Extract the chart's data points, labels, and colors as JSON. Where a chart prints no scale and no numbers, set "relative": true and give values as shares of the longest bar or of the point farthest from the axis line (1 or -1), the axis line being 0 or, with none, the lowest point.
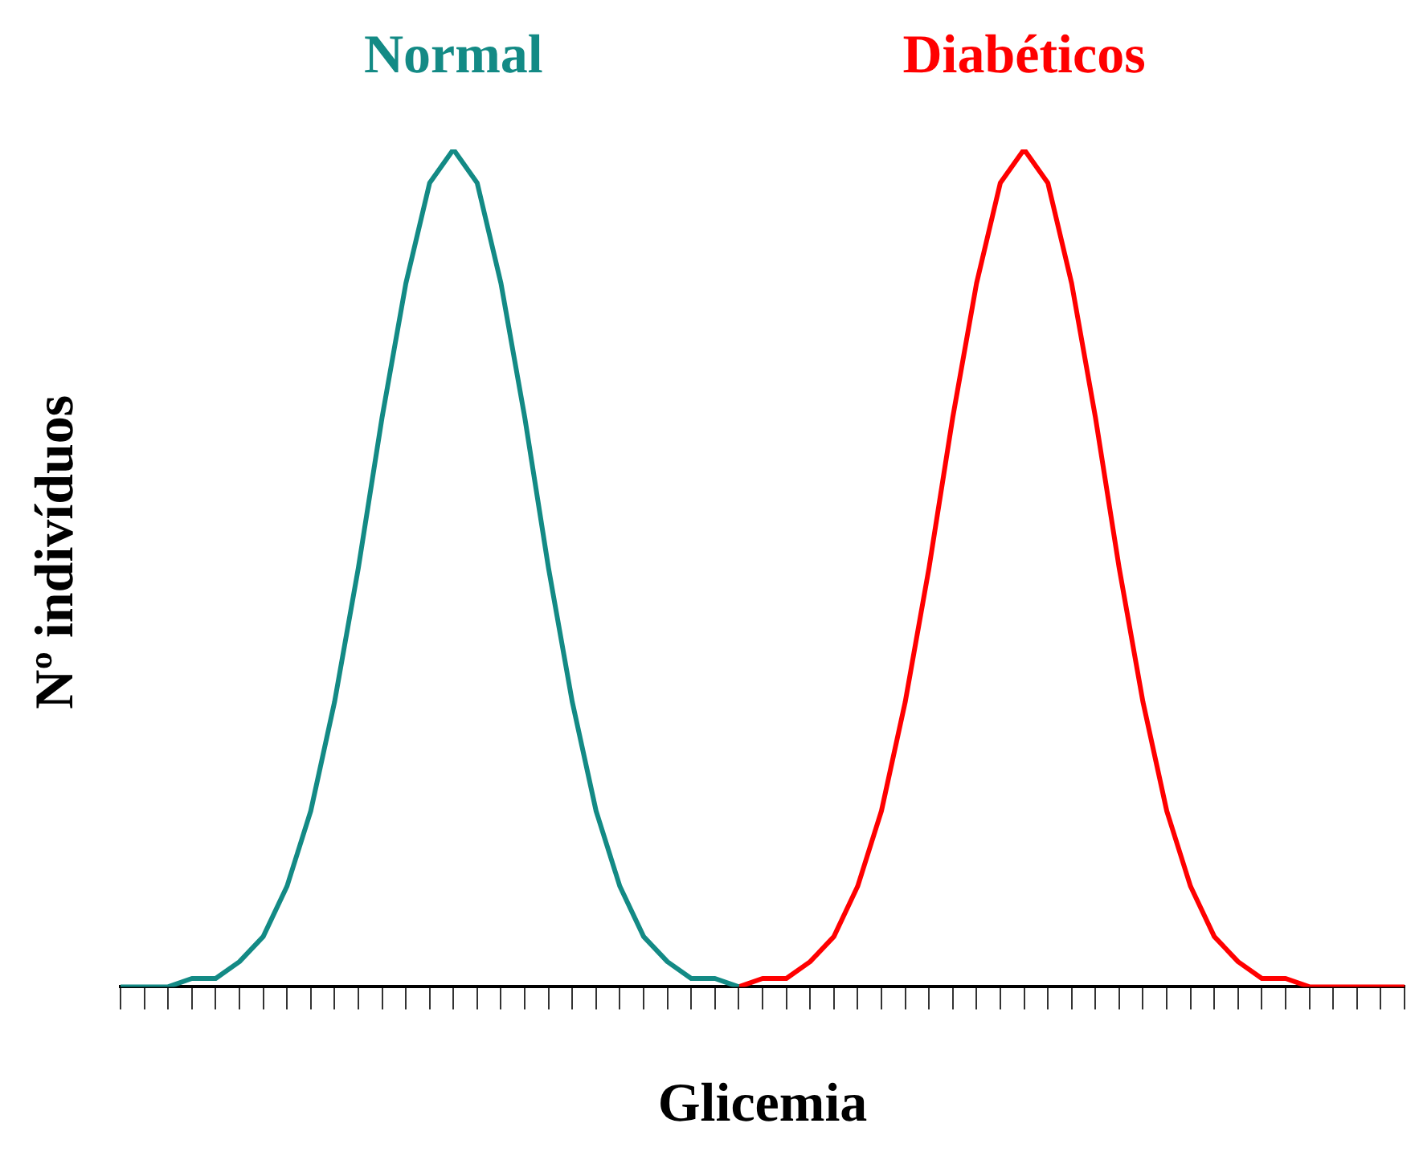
{
  "chart_data": {
    "type": "line",
    "relative": true,
    "xlabel": "Glicemia",
    "ylabel": "Nº indivíduos",
    "legend": false,
    "grid": false,
    "tick_labels": false,
    "marker": "none",
    "categories": [
      null,
      null,
      null,
      null,
      null,
      null,
      null,
      null,
      null,
      null,
      null,
      null,
      null,
      null,
      null,
      null,
      null,
      null,
      null,
      null,
      null,
      null,
      null,
      null,
      null,
      null,
      null,
      null,
      null,
      null,
      null,
      null,
      null,
      null,
      null,
      null,
      null,
      null,
      null,
      null,
      null,
      null,
      null,
      null,
      null,
      null,
      null,
      null,
      null,
      null,
      null,
      null,
      null,
      null,
      null
    ],
    "series": [
      {
        "name": "Normal",
        "color": "#138a85",
        "values": [
          0,
          0,
          0,
          0.01,
          0.01,
          0.03,
          0.06,
          0.12,
          0.21,
          0.34,
          0.5,
          0.68,
          0.84,
          0.96,
          1,
          0.96,
          0.84,
          0.68,
          0.5,
          0.34,
          0.21,
          0.12,
          0.06,
          0.03,
          0.01,
          0.01,
          0,
          null,
          null,
          null,
          null,
          null,
          null,
          null,
          null,
          null,
          null,
          null,
          null,
          null,
          null,
          null,
          null,
          null,
          null,
          null,
          null,
          null,
          null,
          null,
          null,
          null,
          null,
          null,
          null
        ]
      },
      {
        "name": "Diabéticos",
        "color": "#ff0000",
        "values": [
          null,
          null,
          null,
          null,
          null,
          null,
          null,
          null,
          null,
          null,
          null,
          null,
          null,
          null,
          null,
          null,
          null,
          null,
          null,
          null,
          null,
          null,
          null,
          null,
          null,
          null,
          0,
          0.01,
          0.01,
          0.03,
          0.06,
          0.12,
          0.21,
          0.34,
          0.5,
          0.68,
          0.84,
          0.96,
          1,
          0.96,
          0.84,
          0.68,
          0.5,
          0.34,
          0.21,
          0.12,
          0.06,
          0.03,
          0.01,
          0.01,
          0,
          0,
          0,
          0,
          0
        ]
      }
    ]
  }
}
